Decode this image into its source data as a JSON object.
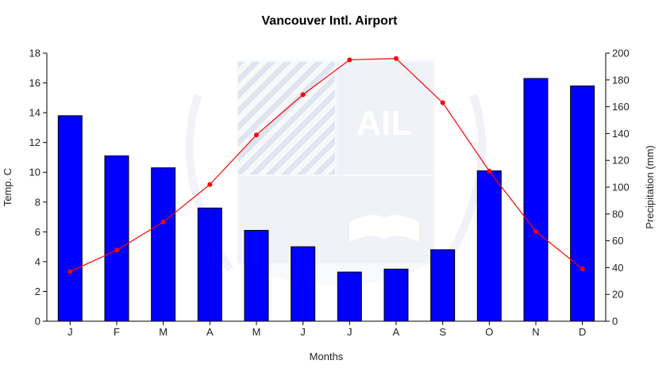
{
  "chart_data": {
    "type": "bar+line",
    "title": "Vancouver Intl. Airport",
    "xlabel": "Months",
    "ylabel_left": "Temp. C",
    "ylabel_right": "Precipitation (mm)",
    "categories": [
      "J",
      "F",
      "M",
      "A",
      "M",
      "J",
      "J",
      "A",
      "S",
      "O",
      "N",
      "D"
    ],
    "ylim_left": [
      0,
      18
    ],
    "yticks_left": [
      0,
      2,
      4,
      6,
      8,
      10,
      12,
      14,
      16,
      18
    ],
    "ylim_right": [
      0,
      200
    ],
    "yticks_right": [
      0,
      20,
      40,
      60,
      80,
      100,
      120,
      140,
      160,
      180,
      200
    ],
    "series": [
      {
        "kind": "bar",
        "axis": "left",
        "values": [
          13.8,
          11.1,
          10.3,
          7.6,
          6.1,
          5.0,
          3.3,
          3.5,
          4.8,
          10.1,
          16.3,
          15.8
        ]
      },
      {
        "kind": "line",
        "axis": "right",
        "values": [
          37,
          53,
          74,
          102,
          139,
          169,
          195,
          196,
          163,
          112,
          67,
          39
        ]
      }
    ],
    "colors": {
      "bars": "#0000ff",
      "bar_outline": "#000000",
      "line": "#ff0000"
    },
    "grid": false,
    "legend": "none"
  },
  "watermark": {
    "text": "AIL"
  }
}
